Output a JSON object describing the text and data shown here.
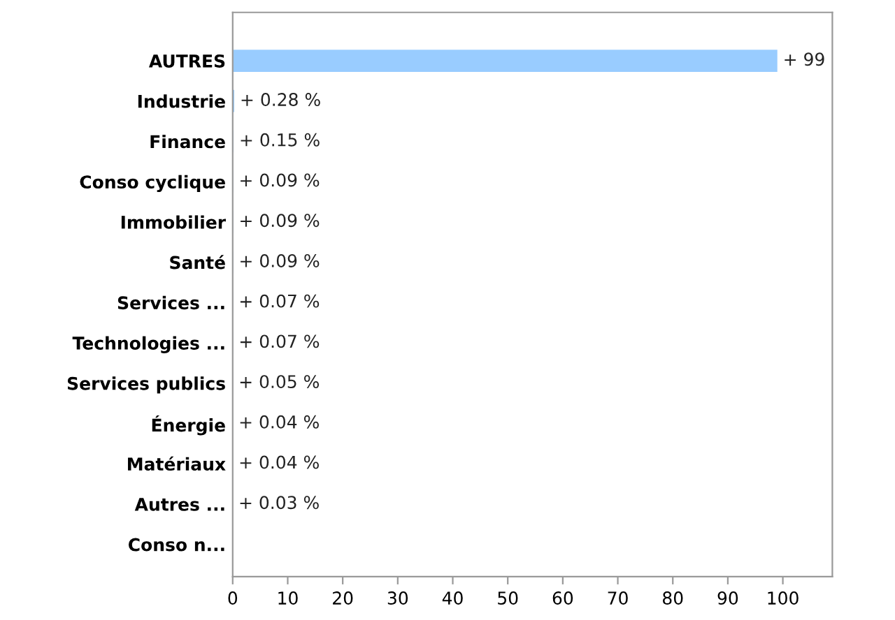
{
  "chart_data": {
    "type": "bar",
    "orientation": "horizontal",
    "categories": [
      "AUTRES",
      "Industrie",
      "Finance",
      "Conso cyclique",
      "Immobilier",
      "Santé",
      "Services ...",
      "Technologies ...",
      "Services publics",
      "Énergie",
      "Matériaux",
      "Autres ...",
      "Conso n..."
    ],
    "values": [
      99,
      0.28,
      0.15,
      0.09,
      0.09,
      0.09,
      0.07,
      0.07,
      0.05,
      0.04,
      0.04,
      0.03,
      null
    ],
    "value_labels": [
      "+ 99",
      "+ 0.28 %",
      "+ 0.15 %",
      "+ 0.09 %",
      "+ 0.09 %",
      "+ 0.09 %",
      "+ 0.07 %",
      "+ 0.07 %",
      "+ 0.05 %",
      "+ 0.04 %",
      "+ 0.04 %",
      "+ 0.03 %",
      null
    ],
    "color": "#99ccff",
    "xlim": [
      0,
      109
    ],
    "xticks": [
      0,
      10,
      20,
      30,
      40,
      50,
      60,
      70,
      80,
      90,
      100
    ],
    "grid": false,
    "legend": false
  }
}
